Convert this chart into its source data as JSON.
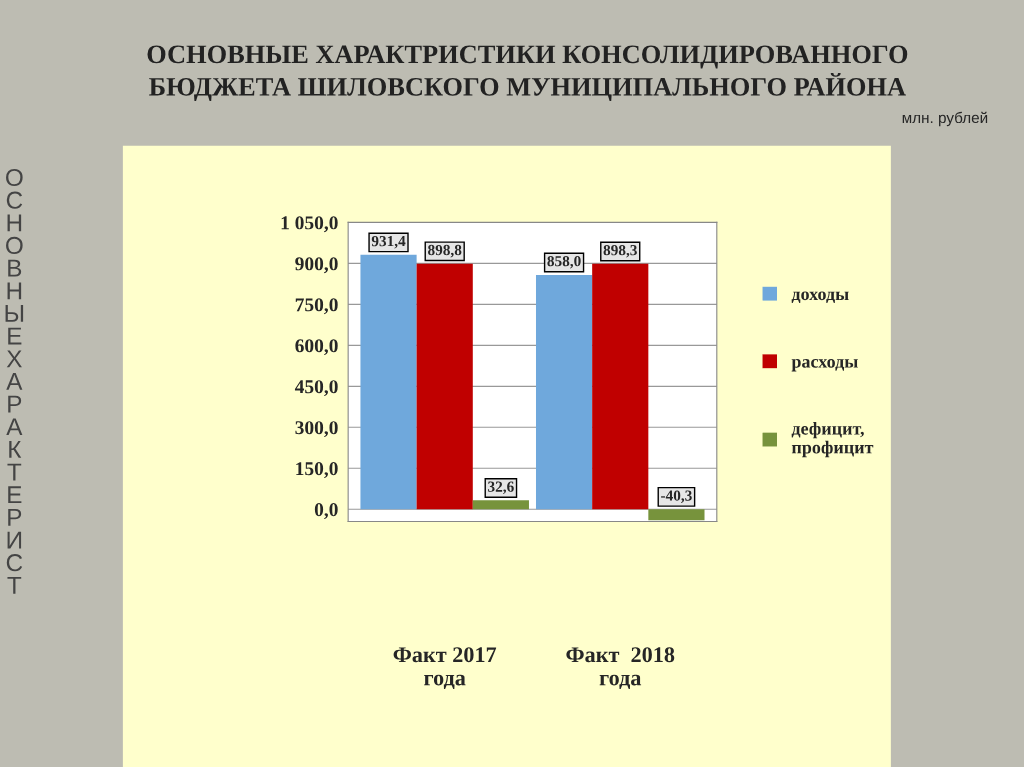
{
  "chart_data": {
    "type": "bar",
    "title": "ОСНОВНЫЕ ХАРАКТРИСТИКИ КОНСОЛИДИРОВАННОГО\nБЮДЖЕТА ШИЛОВСКОГО МУНИЦИПАЛЬНОГО РАЙОНА",
    "annotations": [
      "млн. рублей",
      "ОСНОВНЫЕХАРАКТЕРИСТ"
    ],
    "categories": [
      "Факт 2017\nгода",
      "Факт  2018\nгода"
    ],
    "series": [
      {
        "name": "доходы",
        "color": "#6fa8dc",
        "values": [
          931.4,
          858.0
        ],
        "value_labels": [
          "931,4",
          "858,0"
        ]
      },
      {
        "name": "расходы",
        "color": "#c00000",
        "values": [
          898.8,
          898.3
        ],
        "value_labels": [
          "898,8",
          "898,3"
        ]
      },
      {
        "name": "дефицит,\nпрофицит",
        "color": "#77933c",
        "values": [
          32.6,
          -40.3
        ],
        "value_labels": [
          "32,6",
          "-40,3"
        ]
      }
    ],
    "ylim": [
      -45,
      1050
    ],
    "yticks": [
      {
        "value": 0,
        "label": "0,0"
      },
      {
        "value": 150,
        "label": "150,0"
      },
      {
        "value": 300,
        "label": "300,0"
      },
      {
        "value": 450,
        "label": "450,0"
      },
      {
        "value": 600,
        "label": "600,0"
      },
      {
        "value": 750,
        "label": "750,0"
      },
      {
        "value": 900,
        "label": "900,0"
      },
      {
        "value": 1050,
        "label": "1 050,0"
      }
    ],
    "grid": "y",
    "legend": "right"
  }
}
